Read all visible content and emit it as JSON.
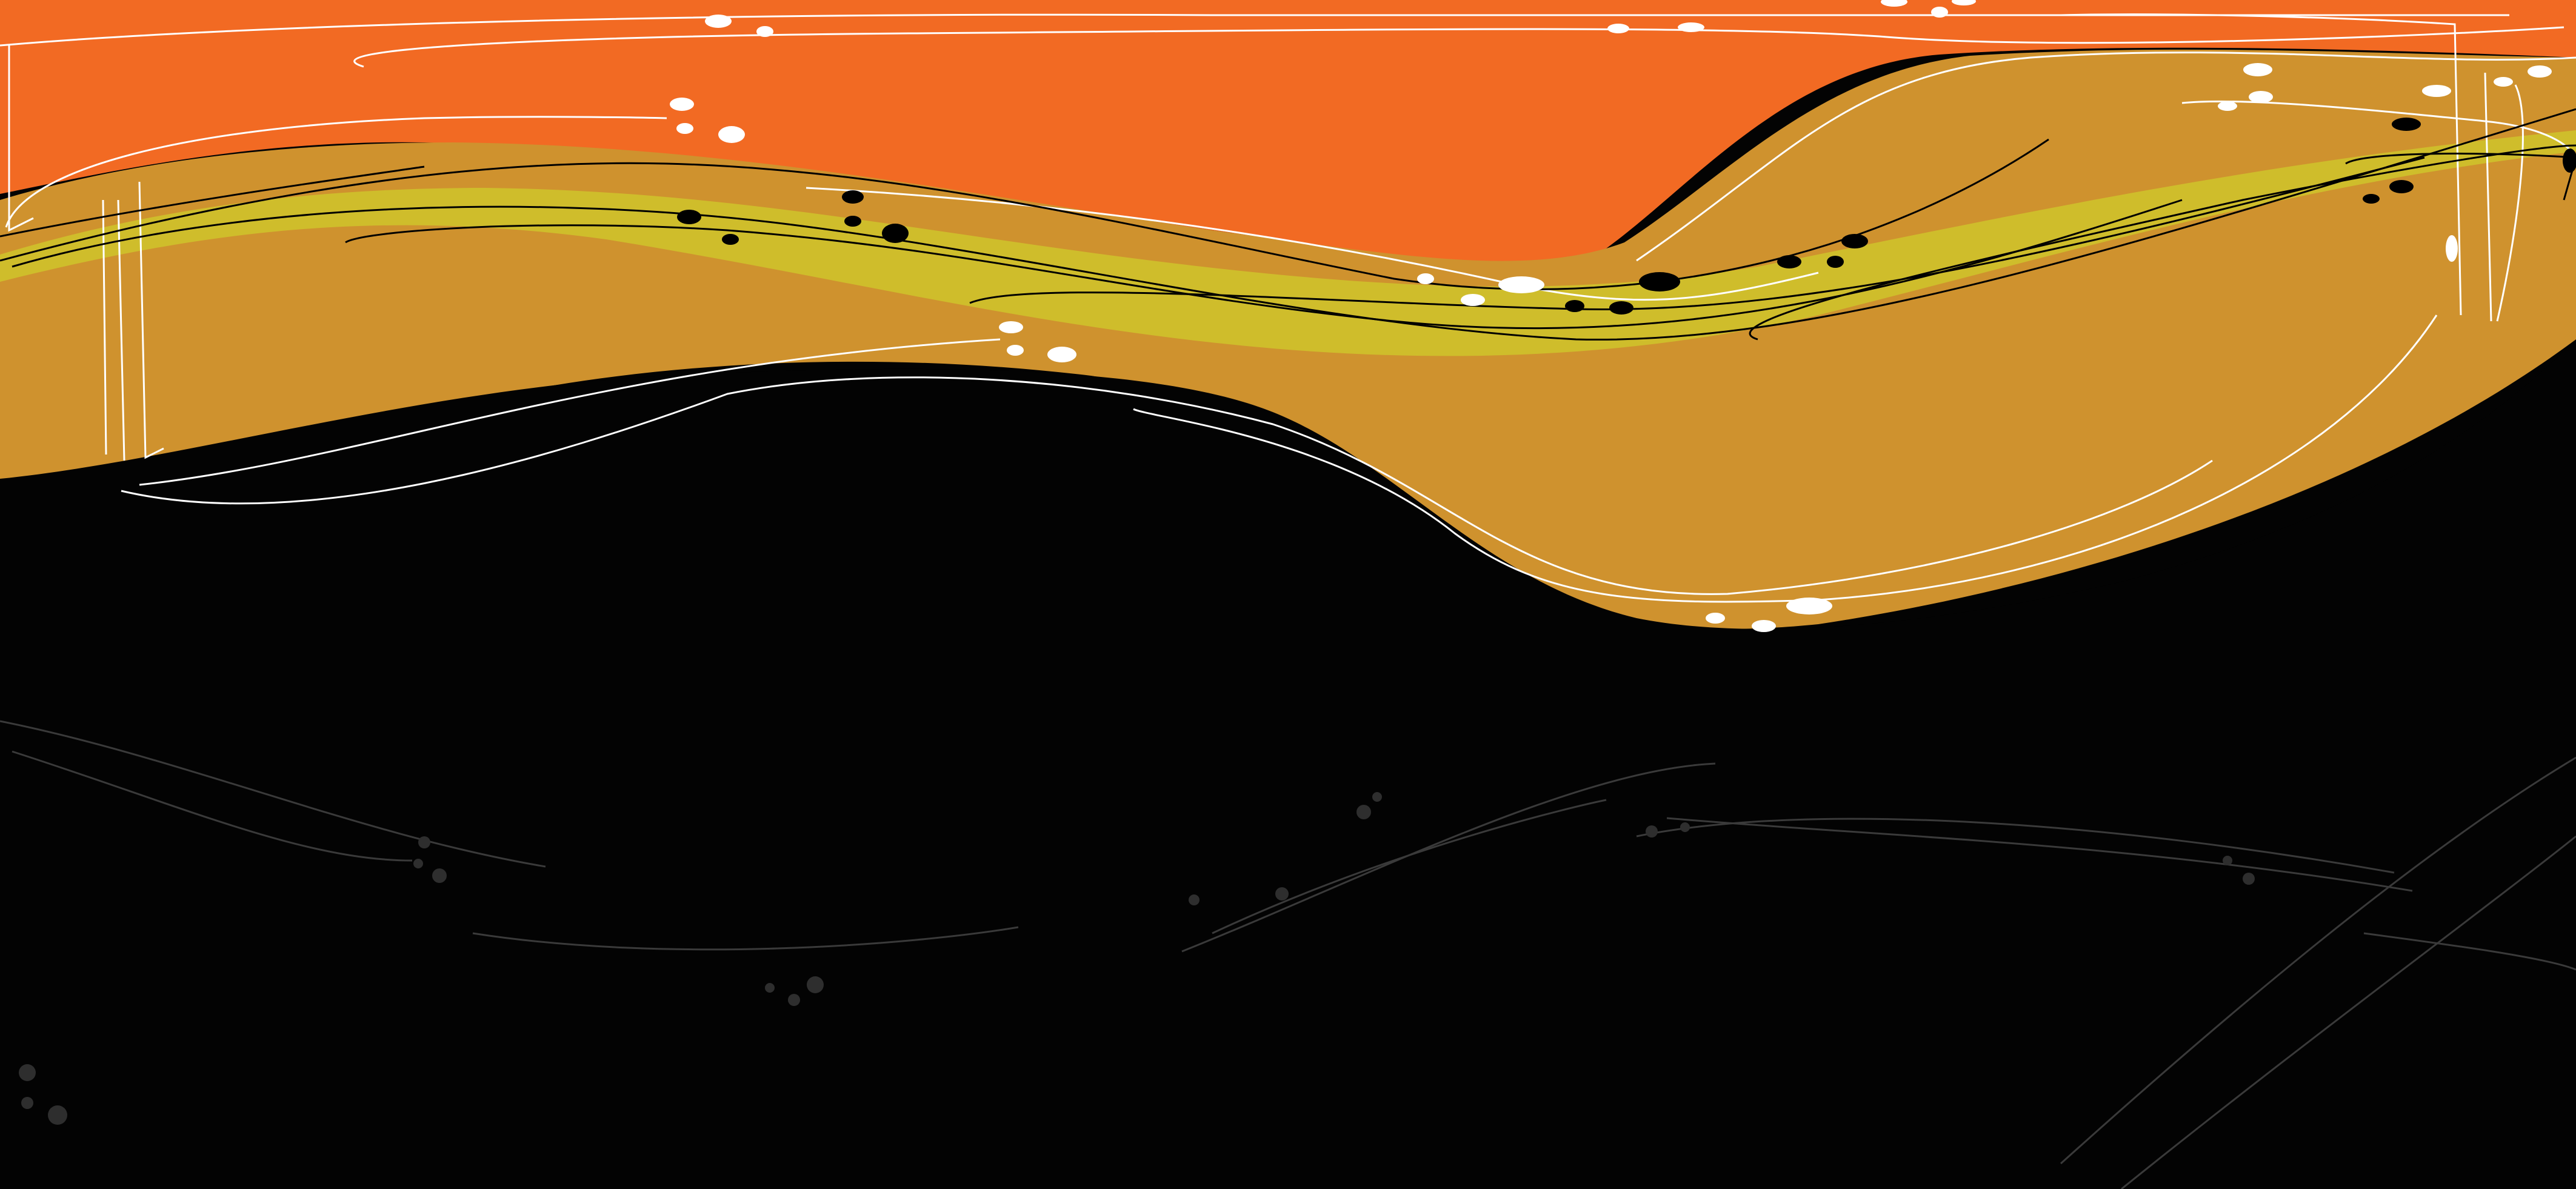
{
  "artwork": {
    "kind": "abstract wave background illustration",
    "visible_text": [],
    "palette": {
      "background": "#030303",
      "orange_band": "#f26a23",
      "ochre_band": "#cf922e",
      "olive_band": "#cfbd2b",
      "line_white": "#ffffff",
      "line_black": "#000000",
      "line_grey_faint": "#3a3a3a",
      "dot_grey_faint": "#2e2e2e"
    }
  }
}
